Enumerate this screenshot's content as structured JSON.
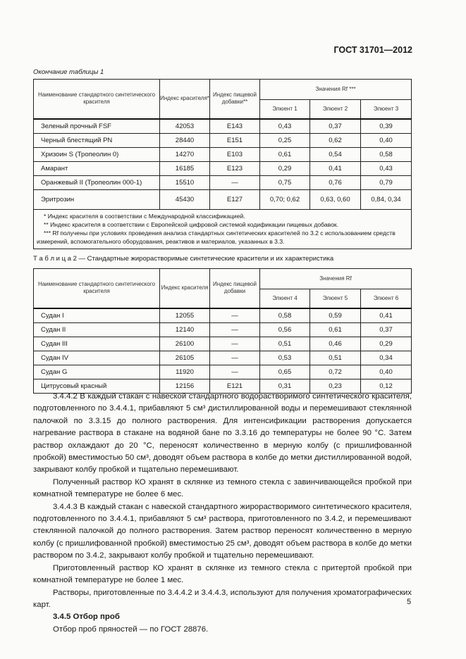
{
  "header": "ГОСТ 31701—2012",
  "table1": {
    "caption": "Окончание таблицы 1",
    "h_name": "Наименование стандартного синтетического красителя",
    "h_index": "Индекс красителя*",
    "h_food": "Индекс пищевой добавки**",
    "h_rf": "Значения Rf ***",
    "eluents": [
      "Элюент 1",
      "Элюент 2",
      "Элюент 3"
    ],
    "rows": [
      [
        "Зеленый прочный FSF",
        "42053",
        "E143",
        "0,43",
        "0,37",
        "0,39"
      ],
      [
        "Черный блестящий PN",
        "28440",
        "E151",
        "0,25",
        "0,62",
        "0,40"
      ],
      [
        "Хризоин S (Тропеолин 0)",
        "14270",
        "E103",
        "0,61",
        "0,54",
        "0,58"
      ],
      [
        "Амарант",
        "16185",
        "E123",
        "0,29",
        "0,41",
        "0,43"
      ],
      [
        "Оранжевый II (Тропеолин 000-1)",
        "15510",
        "—",
        "0,75",
        "0,76",
        "0,79"
      ],
      [
        "Эритрозин",
        "45430",
        "E127",
        "0,70; 0,62",
        "0,63, 0,60",
        "0,84, 0,34"
      ]
    ],
    "footnotes": [
      "* Индекс красителя в соответствии с Международной классификацией.",
      "** Индекс красителя в соответствии с Европейской цифровой системой кодификации пищевых добавок.",
      "*** Rf получены при условиях проведения анализа стандартных синтетических красителей по 3.2 с использованием средств измерений, вспомогательного оборудования, реактивов и материалов, указанных в 3.3."
    ]
  },
  "table2": {
    "caption": "Т а б л и ц а  2 — Стандартные жирорастворимые синтетические красители и их характеристика",
    "h_name": "Наименование стандартного синтетического красителя",
    "h_index": "Индекс красителя",
    "h_food": "Индекс пищевой добавки",
    "h_rf": "Значения Rf",
    "eluents": [
      "Элюент 4",
      "Элюент 5",
      "Элюент 6"
    ],
    "rows": [
      [
        "Судан I",
        "12055",
        "—",
        "0,58",
        "0,59",
        "0,41"
      ],
      [
        "Судан II",
        "12140",
        "—",
        "0,56",
        "0,61",
        "0,37"
      ],
      [
        "Судан III",
        "26100",
        "—",
        "0,51",
        "0,46",
        "0,29"
      ],
      [
        "Судан IV",
        "26105",
        "—",
        "0,53",
        "0,51",
        "0,34"
      ],
      [
        "Судан G",
        "11920",
        "—",
        "0,65",
        "0,72",
        "0,40"
      ],
      [
        "Цитрусовый красный",
        "12156",
        "E121",
        "0,31",
        "0,23",
        "0,12"
      ]
    ]
  },
  "body": [
    "3.4.4.2 В каждый стакан с навеской стандартного водорастворимого синтетического красителя, подготовленного по 3.4.4.1, прибавляют 5 см³ дистиллированной воды и перемешивают стеклянной палочкой по 3.3.15 до полного растворения. Для интенсификации растворения допускается нагревание раствора в стакане на водяной бане по 3.3.16 до температуры не более 90 °С. Затем раствор охлаждают до 20 °С, переносят количественно в мерную колбу (с пришлифованной пробкой) вместимостью 50 см³, доводят объем раствора в колбе до метки дистиллированной водой, закрывают колбу пробкой и тщательно перемешивают.",
    "Полученный раствор КО хранят в склянке из темного стекла с завинчивающейся пробкой при комнатной температуре не более 6 мес.",
    "3.4.4.3 В каждый стакан с навеской стандартного жирорастворимого синтетического красителя, подготовленного по 3.4.4.1, прибавляют 5 см³ раствора, приготовленного по 3.4.2, и перемешивают стеклянной палочкой до полного растворения. Затем раствор переносят количественно в мерную колбу (с пришлифованной пробкой) вместимостью 25 см³, доводят объем раствора в колбе до метки раствором по 3.4.2, закрывают колбу пробкой и тщательно перемешивают.",
    "Приготовленный раствор КО хранят в склянке из темного стекла с притертой пробкой при комнатной температуре не более 1 мес.",
    "Растворы, приготовленные по 3.4.4.2 и 3.4.4.3, используют для получения хроматографических карт.",
    "3.4.5 Отбор проб",
    "Отбор проб пряностей — по ГОСТ 28876."
  ],
  "page_number": "5"
}
